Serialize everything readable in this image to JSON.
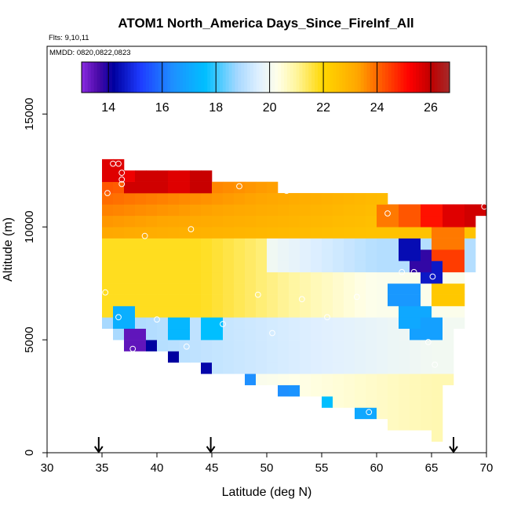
{
  "chart_data": {
    "type": "heatmap",
    "title": "ATOM1 North_America Days_Since_FireInf_All",
    "flights_note": "Flts: 9,10,11",
    "dates_note": "MMDD: 0820,0822,0823",
    "xlabel": "Latitude (deg N)",
    "ylabel": "Altitude (m)",
    "xlim": [
      30,
      70
    ],
    "ylim": [
      0,
      18000
    ],
    "x_ticks": [
      30,
      35,
      40,
      45,
      50,
      55,
      60,
      65,
      70
    ],
    "y_ticks": [
      0,
      5000,
      10000,
      15000
    ],
    "colorbar": {
      "range": [
        13,
        26.7
      ],
      "ticks": [
        14,
        16,
        18,
        20,
        22,
        24,
        26
      ],
      "stops": [
        {
          "v": 13.0,
          "c": "#8a2be2"
        },
        {
          "v": 13.6,
          "c": "#4b0aa8"
        },
        {
          "v": 14.2,
          "c": "#0000a0"
        },
        {
          "v": 15.2,
          "c": "#1e3cff"
        },
        {
          "v": 16.4,
          "c": "#1e90ff"
        },
        {
          "v": 17.6,
          "c": "#00bfff"
        },
        {
          "v": 18.8,
          "c": "#a6d8ff"
        },
        {
          "v": 19.6,
          "c": "#e0f0ff"
        },
        {
          "v": 20.3,
          "c": "#ffffe8"
        },
        {
          "v": 21.0,
          "c": "#fff59d"
        },
        {
          "v": 22.0,
          "c": "#ffd700"
        },
        {
          "v": 23.3,
          "c": "#ffa500"
        },
        {
          "v": 24.4,
          "c": "#ff4500"
        },
        {
          "v": 25.2,
          "c": "#ff0000"
        },
        {
          "v": 26.0,
          "c": "#c00000"
        },
        {
          "v": 26.7,
          "c": "#a52a2a"
        }
      ]
    },
    "grid": {
      "lat_step": 1,
      "alt_step": 500,
      "columns": [
        {
          "lat": 35.5,
          "alt_min": 5500,
          "alt_max": 13000
        },
        {
          "lat": 36.5,
          "alt_min": 5000,
          "alt_max": 13000
        },
        {
          "lat": 37.5,
          "alt_min": 4500,
          "alt_max": 12500
        },
        {
          "lat": 38.5,
          "alt_min": 4500,
          "alt_max": 12500
        },
        {
          "lat": 39.5,
          "alt_min": 4500,
          "alt_max": 12500
        },
        {
          "lat": 40.5,
          "alt_min": 4500,
          "alt_max": 12500
        },
        {
          "lat": 41.5,
          "alt_min": 4000,
          "alt_max": 12500
        },
        {
          "lat": 42.5,
          "alt_min": 4000,
          "alt_max": 12500
        },
        {
          "lat": 43.5,
          "alt_min": 4000,
          "alt_max": 12500
        },
        {
          "lat": 44.5,
          "alt_min": 3500,
          "alt_max": 12500
        },
        {
          "lat": 45.5,
          "alt_min": 3500,
          "alt_max": 12000
        },
        {
          "lat": 46.5,
          "alt_min": 3500,
          "alt_max": 12000
        },
        {
          "lat": 47.5,
          "alt_min": 3500,
          "alt_max": 12000
        },
        {
          "lat": 48.5,
          "alt_min": 3000,
          "alt_max": 12000
        },
        {
          "lat": 49.5,
          "alt_min": 3000,
          "alt_max": 12000
        },
        {
          "lat": 50.5,
          "alt_min": 3000,
          "alt_max": 12000
        },
        {
          "lat": 51.5,
          "alt_min": 2500,
          "alt_max": 11500
        },
        {
          "lat": 52.5,
          "alt_min": 2500,
          "alt_max": 11500
        },
        {
          "lat": 53.5,
          "alt_min": 2500,
          "alt_max": 11500
        },
        {
          "lat": 54.5,
          "alt_min": 2500,
          "alt_max": 11500
        },
        {
          "lat": 55.5,
          "alt_min": 2000,
          "alt_max": 11500
        },
        {
          "lat": 56.5,
          "alt_min": 2000,
          "alt_max": 11500
        },
        {
          "lat": 57.5,
          "alt_min": 2000,
          "alt_max": 11500
        },
        {
          "lat": 58.5,
          "alt_min": 1500,
          "alt_max": 11500
        },
        {
          "lat": 59.5,
          "alt_min": 1500,
          "alt_max": 11500
        },
        {
          "lat": 60.5,
          "alt_min": 1500,
          "alt_max": 11500
        },
        {
          "lat": 61.5,
          "alt_min": 1000,
          "alt_max": 11000
        },
        {
          "lat": 62.5,
          "alt_min": 1000,
          "alt_max": 11000
        },
        {
          "lat": 63.5,
          "alt_min": 1000,
          "alt_max": 11000
        },
        {
          "lat": 64.5,
          "alt_min": 1000,
          "alt_max": 11000
        },
        {
          "lat": 65.5,
          "alt_min": 500,
          "alt_max": 11000
        },
        {
          "lat": 66.5,
          "alt_min": 3000,
          "alt_max": 11000
        },
        {
          "lat": 67.5,
          "alt_min": 5500,
          "alt_max": 11000
        },
        {
          "lat": 68.5,
          "alt_min": 8000,
          "alt_max": 11000
        },
        {
          "lat": 69.5,
          "alt_min": 10500,
          "alt_max": 11000
        }
      ],
      "value_model": {
        "upper_layer": {
          "above_alt": 9500,
          "value_high": 24.0,
          "value_low": 22.5
        },
        "mid_layer": {
          "alt_range": [
            6000,
            9500
          ],
          "value": 21.8
        },
        "low_layer": {
          "below_alt": 6000,
          "value": 18.8
        },
        "background": 20.2
      },
      "anomalies": [
        {
          "lat": 36.0,
          "alt": 12500,
          "value": 25.6
        },
        {
          "lat": 37.0,
          "alt": 12500,
          "value": 25.4
        },
        {
          "lat": 38.0,
          "alt": 12000,
          "value": 25.8
        },
        {
          "lat": 40.0,
          "alt": 12000,
          "value": 25.8
        },
        {
          "lat": 42.0,
          "alt": 12000,
          "value": 25.6
        },
        {
          "lat": 44.0,
          "alt": 12000,
          "value": 25.9
        },
        {
          "lat": 61.5,
          "alt": 10500,
          "value": 23.8
        },
        {
          "lat": 63.0,
          "alt": 10500,
          "value": 24.2
        },
        {
          "lat": 65.0,
          "alt": 10500,
          "value": 25.0
        },
        {
          "lat": 67.0,
          "alt": 10500,
          "value": 25.6
        },
        {
          "lat": 69.0,
          "alt": 10500,
          "value": 25.8
        },
        {
          "lat": 63.0,
          "alt": 9000,
          "value": 14.4
        },
        {
          "lat": 64.0,
          "alt": 8500,
          "value": 13.8
        },
        {
          "lat": 65.0,
          "alt": 8000,
          "value": 14.6
        },
        {
          "lat": 62.5,
          "alt": 7000,
          "value": 16.6
        },
        {
          "lat": 63.5,
          "alt": 6000,
          "value": 17.0
        },
        {
          "lat": 64.5,
          "alt": 5500,
          "value": 16.8
        },
        {
          "lat": 66.5,
          "alt": 9500,
          "value": 23.8
        },
        {
          "lat": 66.5,
          "alt": 8500,
          "value": 24.5
        },
        {
          "lat": 66.5,
          "alt": 7000,
          "value": 22.4
        },
        {
          "lat": 37.0,
          "alt": 6000,
          "value": 17.2
        },
        {
          "lat": 38.0,
          "alt": 5000,
          "value": 13.4
        },
        {
          "lat": 39.0,
          "alt": 4500,
          "value": 14.2
        },
        {
          "lat": 41.0,
          "alt": 4000,
          "value": 14.2
        },
        {
          "lat": 43.5,
          "alt": 3500,
          "value": 14.3
        },
        {
          "lat": 48.0,
          "alt": 3000,
          "value": 16.4
        },
        {
          "lat": 51.0,
          "alt": 2500,
          "value": 16.4
        },
        {
          "lat": 52.0,
          "alt": 2500,
          "value": 16.5
        },
        {
          "lat": 55.0,
          "alt": 2000,
          "value": 17.6
        },
        {
          "lat": 59.0,
          "alt": 1500,
          "value": 17.0
        },
        {
          "lat": 45.0,
          "alt": 5500,
          "value": 17.6
        },
        {
          "lat": 42.0,
          "alt": 5500,
          "value": 17.4
        }
      ]
    },
    "observations": [
      {
        "lat": 35.5,
        "alt": 11500
      },
      {
        "lat": 36.0,
        "alt": 12800
      },
      {
        "lat": 36.5,
        "alt": 12800
      },
      {
        "lat": 36.8,
        "alt": 12400
      },
      {
        "lat": 36.8,
        "alt": 12100
      },
      {
        "lat": 36.8,
        "alt": 11900
      },
      {
        "lat": 38.9,
        "alt": 9600
      },
      {
        "lat": 43.1,
        "alt": 9900
      },
      {
        "lat": 47.5,
        "alt": 11800
      },
      {
        "lat": 51.8,
        "alt": 11600
      },
      {
        "lat": 61.0,
        "alt": 10600
      },
      {
        "lat": 69.8,
        "alt": 10900
      },
      {
        "lat": 62.3,
        "alt": 8000
      },
      {
        "lat": 63.4,
        "alt": 8000
      },
      {
        "lat": 65.1,
        "alt": 7800
      },
      {
        "lat": 64.7,
        "alt": 4900
      },
      {
        "lat": 35.3,
        "alt": 7100
      },
      {
        "lat": 36.5,
        "alt": 6000
      },
      {
        "lat": 40.0,
        "alt": 5900
      },
      {
        "lat": 42.7,
        "alt": 4700
      },
      {
        "lat": 37.8,
        "alt": 4600
      },
      {
        "lat": 46.0,
        "alt": 5700
      },
      {
        "lat": 49.2,
        "alt": 7000
      },
      {
        "lat": 50.5,
        "alt": 5300
      },
      {
        "lat": 53.2,
        "alt": 6800
      },
      {
        "lat": 55.5,
        "alt": 6000
      },
      {
        "lat": 58.2,
        "alt": 6900
      },
      {
        "lat": 59.3,
        "alt": 1800
      },
      {
        "lat": 65.3,
        "alt": 3900
      }
    ],
    "flight_markers_lat": [
      34.7,
      44.9,
      67.0
    ]
  }
}
